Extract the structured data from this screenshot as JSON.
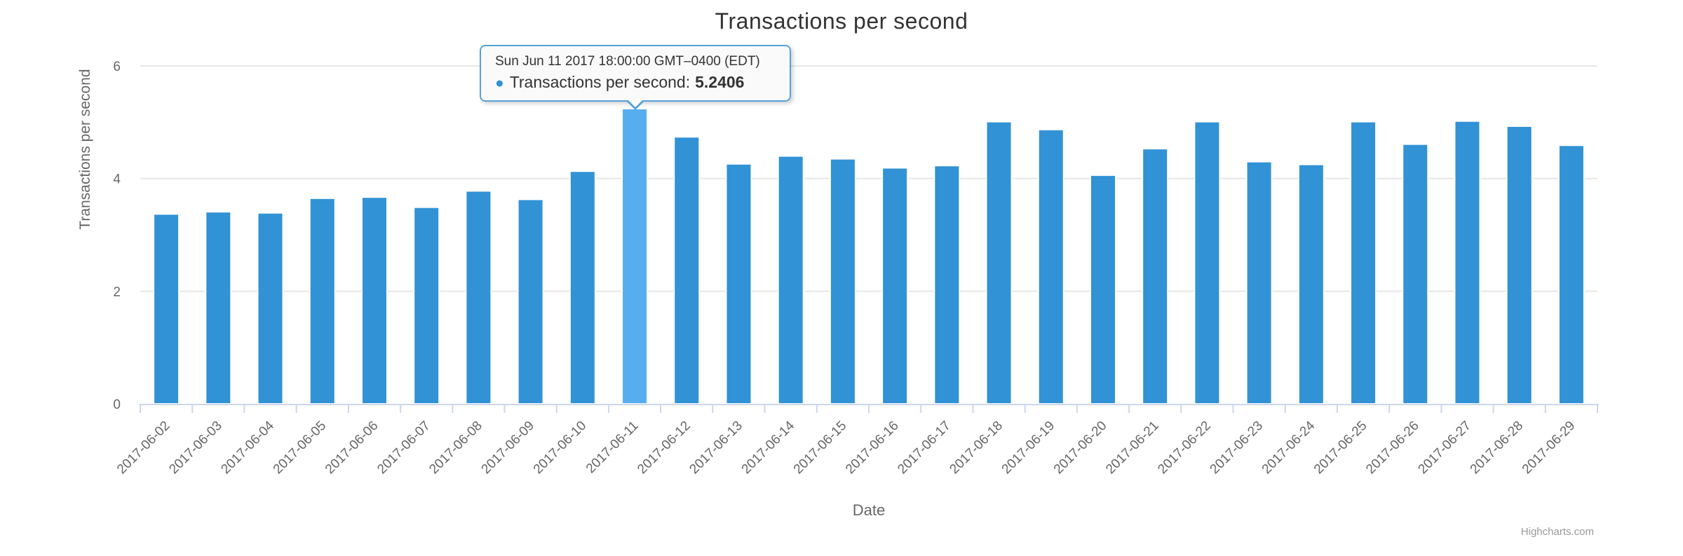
{
  "chart": {
    "title": "Transactions per second",
    "y_axis_title": "Transactions per second",
    "x_axis_title": "Date",
    "credits": "Highcharts.com",
    "colors": {
      "bar": "#3192d6",
      "bar_highlight": "#57aeee",
      "grid": "#e6e6e6",
      "axis": "#ccd6eb",
      "bar_border": "#ffffff",
      "tooltip_border": "#54a3da",
      "title_text": "#333333",
      "axis_text": "#666666",
      "credits_text": "#999999"
    }
  },
  "tooltip": {
    "header": "Sun Jun 11 2017 18:00:00 GMT–0400 (EDT)",
    "series_label": "Transactions per second:",
    "value": "5.2406",
    "point_category": "2017-06-11"
  },
  "chart_data": {
    "type": "bar",
    "title": "Transactions per second",
    "xlabel": "Date",
    "ylabel": "Transactions per second",
    "series_name": "Transactions per second",
    "ylim": [
      0,
      6
    ],
    "yticks": [
      0,
      2,
      4,
      6
    ],
    "grid": true,
    "legend": false,
    "highlighted_index": 9,
    "categories": [
      "2017-06-02",
      "2017-06-03",
      "2017-06-04",
      "2017-06-05",
      "2017-06-06",
      "2017-06-07",
      "2017-06-08",
      "2017-06-09",
      "2017-06-10",
      "2017-06-11",
      "2017-06-12",
      "2017-06-13",
      "2017-06-14",
      "2017-06-15",
      "2017-06-16",
      "2017-06-17",
      "2017-06-18",
      "2017-06-19",
      "2017-06-20",
      "2017-06-21",
      "2017-06-22",
      "2017-06-23",
      "2017-06-24",
      "2017-06-25",
      "2017-06-26",
      "2017-06-27",
      "2017-06-28",
      "2017-06-29"
    ],
    "values": [
      3.37,
      3.41,
      3.39,
      3.65,
      3.67,
      3.49,
      3.78,
      3.63,
      4.13,
      5.2406,
      4.74,
      4.26,
      4.4,
      4.35,
      4.19,
      4.23,
      5.01,
      4.87,
      4.06,
      4.53,
      5.01,
      4.3,
      4.25,
      5.01,
      4.61,
      5.02,
      4.93,
      4.59
    ]
  }
}
